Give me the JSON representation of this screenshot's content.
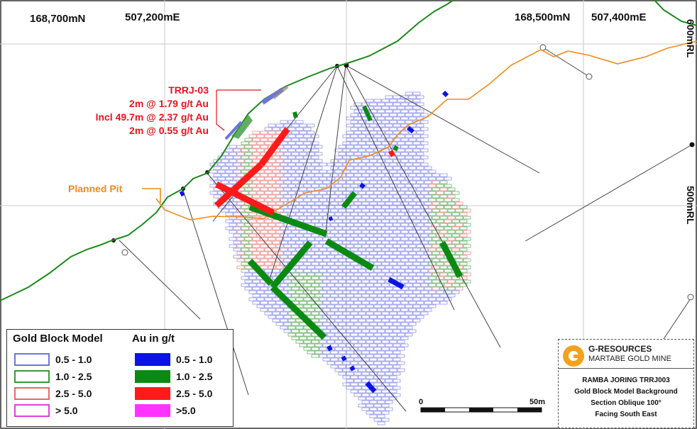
{
  "coords": {
    "n1": "168,700mN",
    "e1": "507,200mE",
    "n2": "168,500mN",
    "e2": "507,400mE",
    "rl1": "600mRL",
    "rl2": "500mRL"
  },
  "annotation": {
    "title": "TRRJ-03",
    "line1": "2m @ 1.79 g/t Au",
    "line2": "Incl 49.7m @ 2.37 g/t Au",
    "line3": "2m @ 0.55 g/t Au"
  },
  "planned_pit": "Planned Pit",
  "legend": {
    "block_title": "Gold Block Model",
    "au_title": "Au in g/t",
    "block_items": [
      {
        "label": "0.5 - 1.0",
        "color": "#6f73e0"
      },
      {
        "label": "1.0 - 2.5",
        "color": "#3a9a3a"
      },
      {
        "label": "2.5 - 5.0",
        "color": "#e56a6a"
      },
      {
        "label": "> 5.0",
        "color": "#e040e0"
      }
    ],
    "au_items": [
      {
        "label": "0.5 - 1.0",
        "color": "#0b13e6"
      },
      {
        "label": "1.0 - 2.5",
        "color": "#0a8a12"
      },
      {
        "label": "2.5 - 5.0",
        "color": "#ff1a1a"
      },
      {
        "label": ">5.0",
        "color": "#ff33ff"
      }
    ]
  },
  "scale": {
    "start": "0",
    "end": "50m"
  },
  "company": {
    "name": "G-RESOURCES",
    "mine": "MARTABE GOLD MINE",
    "line1": "RAMBA JORING TRRJ003",
    "line2": "Gold Block Model Background",
    "line3": "Section Oblique 100°",
    "line4": "Facing South East"
  },
  "colors": {
    "topo": "#1a8a1a",
    "pit": "#f28a1c",
    "annotation": "#e8141b"
  }
}
